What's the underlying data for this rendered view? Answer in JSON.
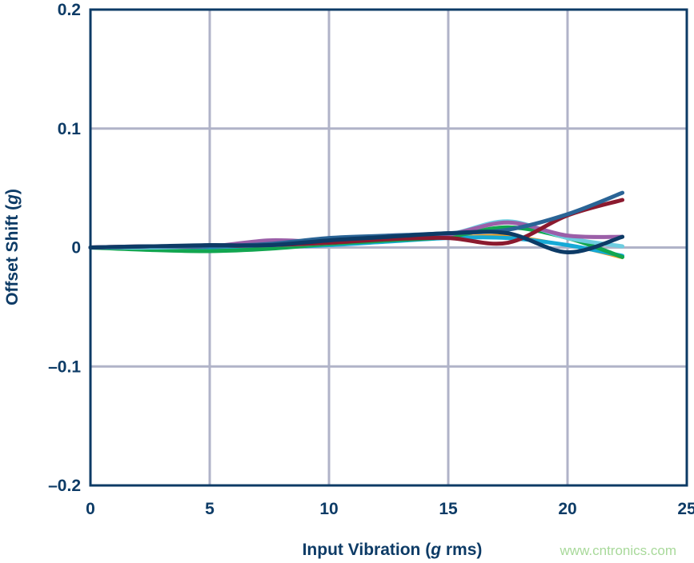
{
  "chart_data": {
    "type": "line",
    "title": "",
    "xlabel": "Input Vibration (g rms)",
    "xlabel_parts": [
      "Input Vibration (",
      "g",
      " rms)"
    ],
    "ylabel": "Offset Shift (g)",
    "ylabel_parts": [
      "Offset Shift (",
      "g",
      ")"
    ],
    "xlim": [
      0,
      25
    ],
    "ylim": [
      -0.2,
      0.2
    ],
    "xticks": [
      0,
      5,
      10,
      15,
      20,
      25
    ],
    "xtick_labels": [
      "0",
      "5",
      "10",
      "15",
      "20",
      "25"
    ],
    "yticks": [
      -0.2,
      -0.1,
      0,
      0.1,
      0.2
    ],
    "ytick_labels": [
      "–0.2",
      "–0.1",
      "0",
      "0.1",
      "0.2"
    ],
    "grid": true,
    "x": [
      0,
      2.5,
      5,
      7.5,
      10,
      12.5,
      15,
      17.5,
      20,
      22.3
    ],
    "series": [
      {
        "color": "#f5a020",
        "values": [
          0,
          -0.002,
          -0.002,
          0,
          0.003,
          0.006,
          0.009,
          0.01,
          0.002,
          -0.009
        ]
      },
      {
        "color": "#16a9d6",
        "values": [
          0,
          -0.001,
          -0.002,
          0,
          0.002,
          0.005,
          0.008,
          0.008,
          0.002,
          -0.007
        ]
      },
      {
        "color": "#12a650",
        "values": [
          0,
          -0.002,
          -0.003,
          -0.001,
          0.003,
          0.006,
          0.009,
          0.017,
          0.008,
          -0.008
        ]
      },
      {
        "color": "#6dcde0",
        "values": [
          0,
          0,
          0.001,
          0.002,
          0.004,
          0.008,
          0.011,
          0.022,
          0.008,
          0.001
        ]
      },
      {
        "color": "#9b5fa8",
        "values": [
          0,
          0.001,
          0.001,
          0.006,
          0.005,
          0.01,
          0.011,
          0.021,
          0.01,
          0.009
        ]
      },
      {
        "color": "#8b1a2f",
        "values": [
          0,
          0.001,
          0.001,
          0.002,
          0.004,
          0.007,
          0.008,
          0.004,
          0.027,
          0.04
        ]
      },
      {
        "color": "#2a6496",
        "values": [
          0,
          0.001,
          0.001,
          0.003,
          0.008,
          0.01,
          0.012,
          0.015,
          0.028,
          0.046
        ]
      },
      {
        "color": "#0d3b66",
        "values": [
          0,
          0.001,
          0.002,
          0.002,
          0.006,
          0.009,
          0.012,
          0.012,
          -0.004,
          0.009
        ]
      }
    ],
    "colors": {
      "axis": "#0d3b66",
      "grid": "#b0b3c8",
      "text": "#0d3b66"
    }
  },
  "watermark": "www.cntronics.com"
}
